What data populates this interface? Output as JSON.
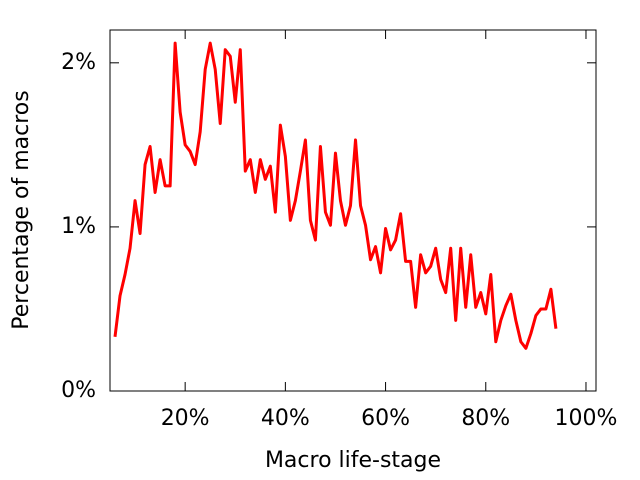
{
  "chart_data": {
    "type": "line",
    "xlabel": "Macro life-stage",
    "ylabel": "Percentage of macros",
    "x": [
      6,
      7,
      8,
      9,
      10,
      11,
      12,
      13,
      14,
      15,
      16,
      17,
      18,
      19,
      20,
      21,
      22,
      23,
      24,
      25,
      26,
      27,
      28,
      29,
      30,
      31,
      32,
      33,
      34,
      35,
      36,
      37,
      38,
      39,
      40,
      41,
      42,
      43,
      44,
      45,
      46,
      47,
      48,
      49,
      50,
      51,
      52,
      53,
      54,
      55,
      56,
      57,
      58,
      59,
      60,
      61,
      62,
      63,
      64,
      65,
      66,
      67,
      68,
      69,
      70,
      71,
      72,
      73,
      74,
      75,
      76,
      77,
      78,
      79,
      80,
      81,
      82,
      83,
      84,
      85,
      86,
      87,
      88,
      89,
      90,
      91,
      92,
      93,
      94
    ],
    "values": [
      0.33,
      0.58,
      0.71,
      0.87,
      1.16,
      0.96,
      1.38,
      1.49,
      1.21,
      1.41,
      1.25,
      1.25,
      2.12,
      1.7,
      1.5,
      1.46,
      1.38,
      1.58,
      1.96,
      2.12,
      1.96,
      1.63,
      2.08,
      2.04,
      1.76,
      2.08,
      1.34,
      1.41,
      1.21,
      1.41,
      1.29,
      1.37,
      1.09,
      1.62,
      1.43,
      1.04,
      1.16,
      1.34,
      1.53,
      1.04,
      0.92,
      1.49,
      1.09,
      1.01,
      1.45,
      1.16,
      1.01,
      1.13,
      1.53,
      1.13,
      1.01,
      0.8,
      0.88,
      0.72,
      0.99,
      0.86,
      0.92,
      1.08,
      0.79,
      0.79,
      0.51,
      0.83,
      0.72,
      0.76,
      0.87,
      0.68,
      0.6,
      0.87,
      0.43,
      0.87,
      0.51,
      0.83,
      0.51,
      0.6,
      0.47,
      0.71,
      0.3,
      0.43,
      0.52,
      0.59,
      0.43,
      0.3,
      0.26,
      0.35,
      0.46,
      0.5,
      0.5,
      0.62,
      0.38
    ],
    "color": "#ff0000",
    "xlim": [
      5,
      102
    ],
    "ylim": [
      0,
      2.2
    ],
    "xticks": [
      {
        "value": 20,
        "label": "20%"
      },
      {
        "value": 40,
        "label": "40%"
      },
      {
        "value": 60,
        "label": "60%"
      },
      {
        "value": 80,
        "label": "80%"
      },
      {
        "value": 100,
        "label": "100%"
      }
    ],
    "yticks": [
      {
        "value": 0,
        "label": "0%"
      },
      {
        "value": 1,
        "label": "1%"
      },
      {
        "value": 2,
        "label": "2%"
      }
    ],
    "grid": false
  }
}
